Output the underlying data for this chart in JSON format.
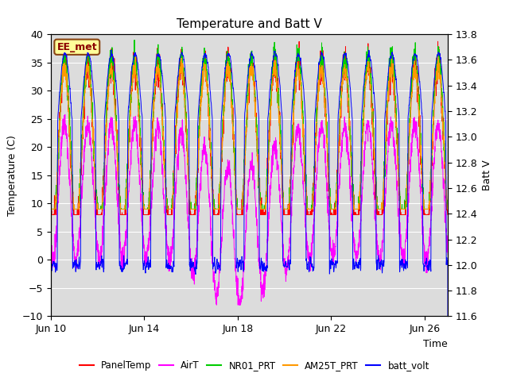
{
  "title": "Temperature and Batt V",
  "xlabel": "Time",
  "ylabel_left": "Temperature (C)",
  "ylabel_right": "Batt V",
  "ylim_left": [
    -10,
    40
  ],
  "ylim_right": [
    11.6,
    13.8
  ],
  "yticks_left": [
    -10,
    -5,
    0,
    5,
    10,
    15,
    20,
    25,
    30,
    35,
    40
  ],
  "yticks_right": [
    11.6,
    11.8,
    12.0,
    12.2,
    12.4,
    12.6,
    12.8,
    13.0,
    13.2,
    13.4,
    13.6,
    13.8
  ],
  "xtick_labels": [
    "Jun 10",
    "Jun 14",
    "Jun 18",
    "Jun 22",
    "Jun 26"
  ],
  "xtick_positions": [
    0,
    4,
    8,
    12,
    16
  ],
  "site_label": "EE_met",
  "colors": {
    "PanelTemp": "#ff0000",
    "AirT": "#ff00ff",
    "NR01_PRT": "#00cc00",
    "AM25T_PRT": "#ff9900",
    "batt_volt": "#0000ff"
  },
  "legend_labels": [
    "PanelTemp",
    "AirT",
    "NR01_PRT",
    "AM25T_PRT",
    "batt_volt"
  ],
  "bg_color": "#dcdcdc",
  "fig_bg": "#ffffff",
  "n_days": 17,
  "samples_per_day": 144
}
